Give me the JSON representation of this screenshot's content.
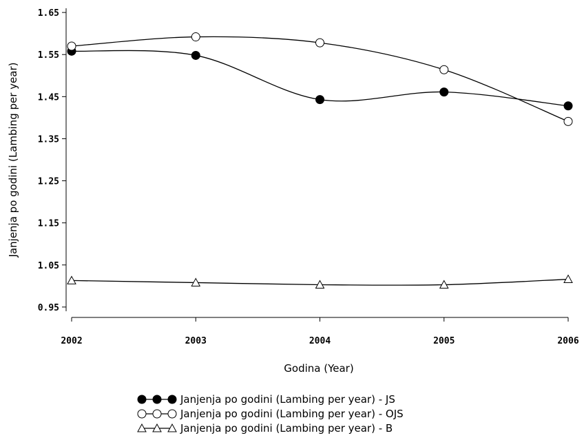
{
  "chart_data": {
    "type": "line",
    "xlabel": "Godina (Year)",
    "ylabel": "Janjenja po godini (Lambing per year)",
    "x": [
      2002,
      2003,
      2004,
      2005,
      2006
    ],
    "x_tick_labels": [
      "2002",
      "2003",
      "2004",
      "2005",
      "2006"
    ],
    "y_ticks": [
      0.95,
      1.05,
      1.15,
      1.25,
      1.35,
      1.45,
      1.55,
      1.65
    ],
    "y_tick_labels": [
      "0.95",
      "1.05",
      "1.15",
      "1.25",
      "1.35",
      "1.45",
      "1.55",
      "1.65"
    ],
    "ylim": [
      0.94,
      1.66
    ],
    "grid": false,
    "legend_position": "bottom-center",
    "series": [
      {
        "name": "Janjenja po godini (Lambing per year) - JS",
        "marker": "filled-circle",
        "values": [
          1.558,
          1.548,
          1.443,
          1.461,
          1.428
        ]
      },
      {
        "name": "Janjenja po godini (Lambing per year) - OJS",
        "marker": "open-circle",
        "values": [
          1.57,
          1.592,
          1.578,
          1.514,
          1.391
        ]
      },
      {
        "name": "Janjenja po godini (Lambing per year) - B",
        "marker": "open-triangle",
        "values": [
          1.013,
          1.008,
          1.003,
          1.003,
          1.016
        ]
      }
    ]
  }
}
